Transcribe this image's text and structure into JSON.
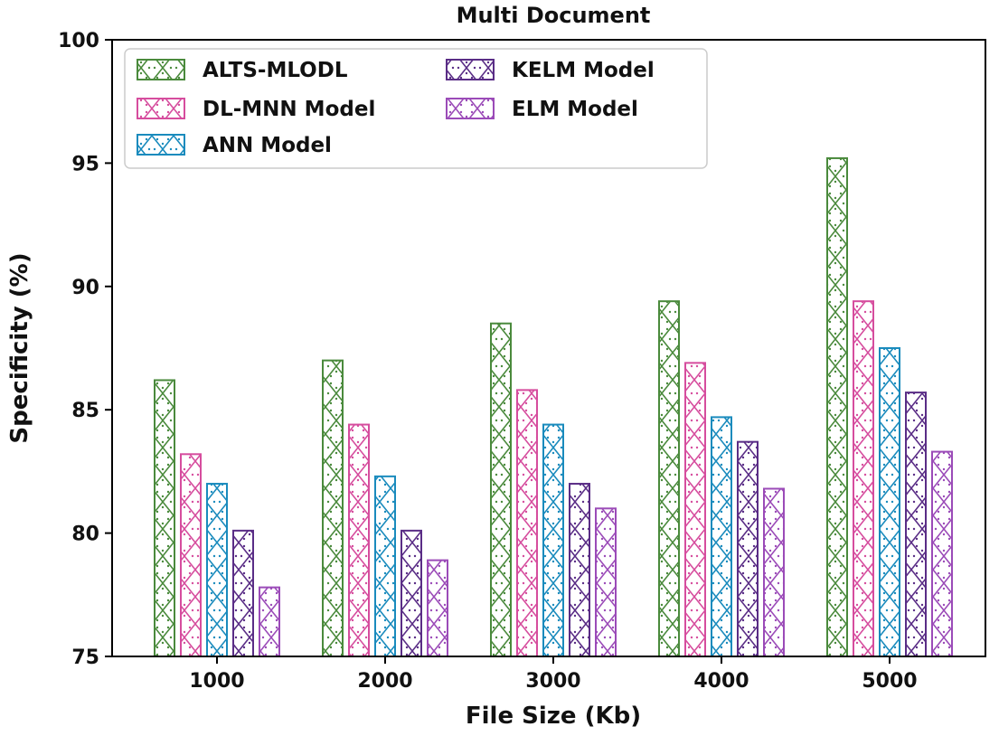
{
  "chart_data": {
    "type": "bar",
    "title": "Multi Document",
    "xlabel": "File Size (Kb)",
    "ylabel": "Specificity (%)",
    "ylim": [
      75,
      100
    ],
    "yticks": [
      75,
      80,
      85,
      90,
      95,
      100
    ],
    "categories": [
      "1000",
      "2000",
      "3000",
      "4000",
      "5000"
    ],
    "legend_position": "top-left",
    "series": [
      {
        "name": "ALTS-MLODL",
        "color": "#4a8a3c",
        "values": [
          86.2,
          87.0,
          88.5,
          89.4,
          95.2
        ]
      },
      {
        "name": "DL-MNN Model",
        "color": "#d64d9e",
        "values": [
          83.2,
          84.4,
          85.8,
          86.9,
          89.4
        ]
      },
      {
        "name": "ANN Model",
        "color": "#1a8bbd",
        "values": [
          82.0,
          82.3,
          84.4,
          84.7,
          87.5
        ]
      },
      {
        "name": "KELM Model",
        "color": "#5a2d86",
        "values": [
          80.1,
          80.1,
          82.0,
          83.7,
          85.7
        ]
      },
      {
        "name": "ELM Model",
        "color": "#9b4bb8",
        "values": [
          77.8,
          78.9,
          81.0,
          81.8,
          83.3
        ]
      }
    ]
  }
}
